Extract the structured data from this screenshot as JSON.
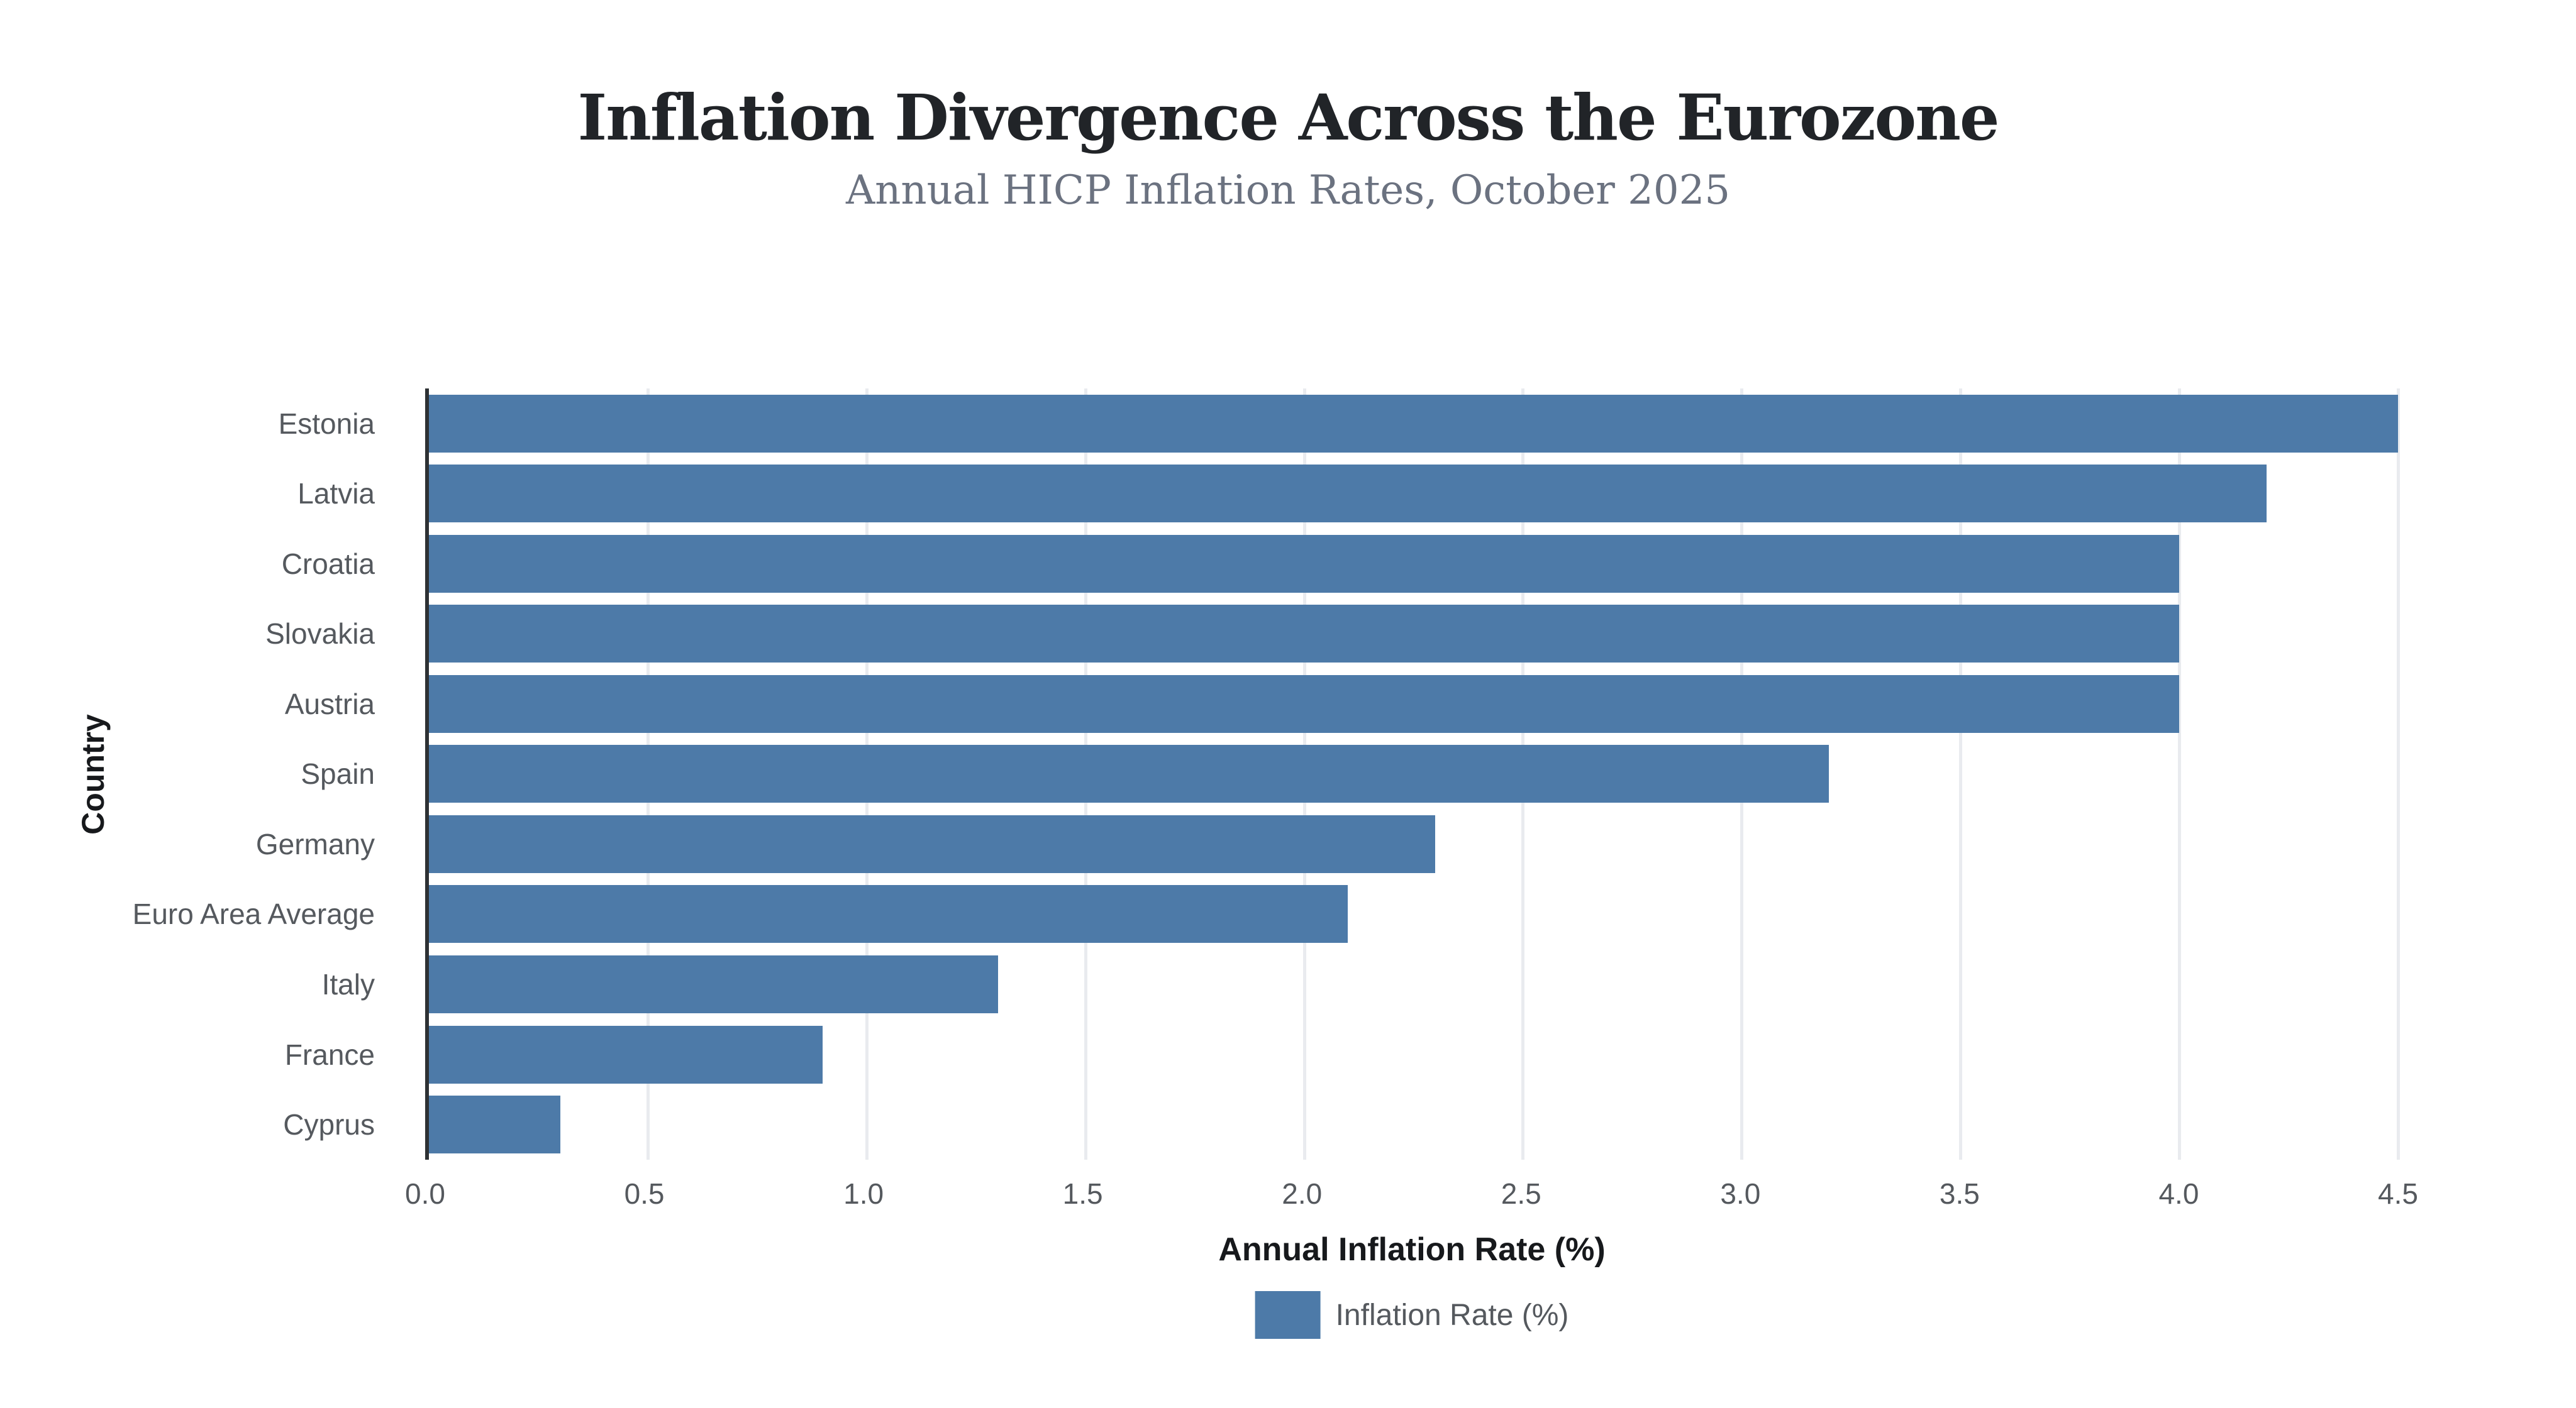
{
  "header": {
    "title": "Inflation Divergence Across the Eurozone",
    "subtitle": "Annual HICP Inflation Rates, October 2025"
  },
  "legend": {
    "label": "Inflation Rate (%)"
  },
  "colors": {
    "bar": "#4d7aa8",
    "gridline": "#e9ebef",
    "axis_line": "#2e3134",
    "title_text": "#212428",
    "subtitle_text": "#6b7280",
    "tick_text": "#55595e"
  },
  "chart_data": {
    "type": "bar",
    "orientation": "horizontal",
    "title": "Inflation Divergence Across the Eurozone",
    "subtitle": "Annual HICP Inflation Rates, October 2025",
    "categories": [
      "Estonia",
      "Latvia",
      "Croatia",
      "Slovakia",
      "Austria",
      "Spain",
      "Germany",
      "Euro Area Average",
      "Italy",
      "France",
      "Cyprus"
    ],
    "series": [
      {
        "name": "Inflation Rate (%)",
        "values": [
          4.5,
          4.2,
          4.0,
          4.0,
          4.0,
          3.2,
          2.3,
          2.1,
          1.3,
          0.9,
          0.3
        ]
      }
    ],
    "xlabel": "Annual Inflation Rate (%)",
    "ylabel": "Country",
    "xlim": [
      0,
      4.5
    ],
    "xticks": [
      "0.0",
      "0.5",
      "1.0",
      "1.5",
      "2.0",
      "2.5",
      "3.0",
      "3.5",
      "4.0",
      "4.5"
    ],
    "grid": true,
    "legend_position": "bottom"
  }
}
